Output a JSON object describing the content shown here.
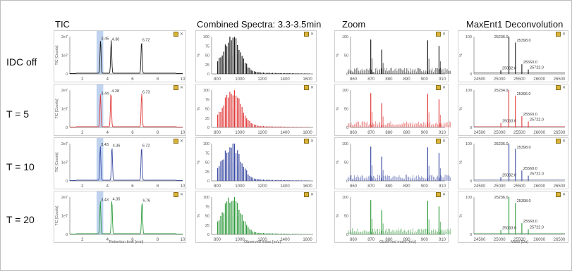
{
  "columns": [
    "TIC",
    "Combined Spectra: 3.3-3.5min",
    "Zoom",
    "MaxEnt1 Deconvolution"
  ],
  "rows": [
    "IDC off",
    "T = 5",
    "T = 10",
    "T = 20"
  ],
  "colors": {
    "IDC off": "#1a1a1a",
    "T = 5": "#e0393a",
    "T = 10": "#3a4aa2",
    "T = 20": "#2f9a3b",
    "highlight": "#aac4ea"
  },
  "icons": [
    "pin-icon",
    "close-icon"
  ],
  "axis_labels": {
    "tic_y": "TIC [Counts]",
    "tic_x": "Retention time [min]",
    "spec_x": "Observed mass [m/z]",
    "zoom_x": "Observed mass [m/z]",
    "deconv_x": "Mass [Da]"
  },
  "chart_data": [
    {
      "type": "line",
      "title": "TIC",
      "xlim": [
        1,
        10
      ],
      "xticks": [
        "2",
        "4",
        "6",
        "8",
        "10"
      ],
      "yticks": [
        "0",
        "1e7",
        "2e7"
      ],
      "xlabel": "Retention time [min]",
      "ylabel": "TIC [Counts]",
      "highlight_range": [
        3.3,
        3.5
      ],
      "series": [
        {
          "name": "IDC off",
          "peaks": [
            {
              "x": 3.45,
              "label": "3.45",
              "h": 0.9
            },
            {
              "x": 4.3,
              "label": "4.30",
              "h": 0.88
            },
            {
              "x": 6.72,
              "label": "6.72",
              "h": 0.86
            }
          ]
        },
        {
          "name": "T = 5",
          "peaks": [
            {
              "x": 3.44,
              "label": "3.44",
              "h": 0.86
            },
            {
              "x": 4.28,
              "label": "4.28",
              "h": 0.92
            },
            {
              "x": 6.73,
              "label": "6.73",
              "h": 0.9
            }
          ]
        },
        {
          "name": "T = 10",
          "peaks": [
            {
              "x": 3.43,
              "label": "3.43",
              "h": 0.92
            },
            {
              "x": 4.36,
              "label": "4.36",
              "h": 0.9
            },
            {
              "x": 6.72,
              "label": "6.72",
              "h": 0.9
            }
          ]
        },
        {
          "name": "T = 20",
          "peaks": [
            {
              "x": 3.43,
              "label": "3.43",
              "h": 0.88
            },
            {
              "x": 4.35,
              "label": "4.35",
              "h": 0.9
            },
            {
              "x": 6.76,
              "label": "6.76",
              "h": 0.86
            }
          ]
        }
      ]
    },
    {
      "type": "bar",
      "title": "Combined Spectra: 3.3-3.5min",
      "xlim": [
        700,
        1700
      ],
      "xticks": [
        "800",
        "1000",
        "1200",
        "1400",
        "1600"
      ],
      "yticks": [
        "0",
        "25",
        "50",
        "75",
        "100"
      ],
      "ylabel": "%",
      "xlabel": "Observed mass [m/z]",
      "peak_center": 900,
      "series": [
        {
          "name": "IDC off"
        },
        {
          "name": "T = 5"
        },
        {
          "name": "T = 10"
        },
        {
          "name": "T = 20"
        }
      ]
    },
    {
      "type": "bar",
      "title": "Zoom",
      "xlim": [
        955,
        915
      ],
      "xticks": [
        "860",
        "870",
        "880",
        "890",
        "900",
        "910"
      ],
      "yticks": [
        "0",
        "50",
        "100"
      ],
      "ylabel": "%",
      "xlabel": "Observed mass [m/z]",
      "major_peaks": [
        869.8,
        876.0,
        901.8,
        908.2
      ],
      "series": [
        {
          "name": "IDC off"
        },
        {
          "name": "T = 5"
        },
        {
          "name": "T = 10"
        },
        {
          "name": "T = 20"
        }
      ]
    },
    {
      "type": "bar",
      "title": "MaxEnt1 Deconvolution",
      "xlim": [
        24200,
        26700
      ],
      "xticks": [
        "24500",
        "25000",
        "25500",
        "26000",
        "26500"
      ],
      "yticks": [
        "0",
        "100"
      ],
      "ylabel": "%",
      "xlabel": "Mass [Da]",
      "series": [
        {
          "name": "IDC off",
          "peaks": [
            {
              "x": 25236.0,
              "label": "25236.0",
              "h": 1.0
            },
            {
              "x": 25398.0,
              "label": "25398.0",
              "h": 0.84
            },
            {
              "x": 25032.0,
              "label": "25032.0",
              "h": 0.1
            },
            {
              "x": 25560.0,
              "label": "25560.0",
              "h": 0.26
            },
            {
              "x": 25722.0,
              "label": "25722.0",
              "h": 0.12
            }
          ]
        },
        {
          "name": "T = 5",
          "peaks": [
            {
              "x": 25234.0,
              "label": "25234.0",
              "h": 1.0
            },
            {
              "x": 25396.0,
              "label": "25396.0",
              "h": 0.85
            },
            {
              "x": 25033.0,
              "label": "25033.0",
              "h": 0.12
            },
            {
              "x": 25560.0,
              "label": "25560.0",
              "h": 0.3
            },
            {
              "x": 25722.0,
              "label": "25722.0",
              "h": 0.16
            }
          ]
        },
        {
          "name": "T = 10",
          "peaks": [
            {
              "x": 25236.0,
              "label": "25236.0",
              "h": 1.0
            },
            {
              "x": 25398.0,
              "label": "25398.0",
              "h": 0.86
            },
            {
              "x": 25032.0,
              "label": "25032.0",
              "h": 0.1
            },
            {
              "x": 25560.0,
              "label": "25560.0",
              "h": 0.28
            },
            {
              "x": 25722.0,
              "label": "25722.0",
              "h": 0.14
            }
          ]
        },
        {
          "name": "T = 20",
          "peaks": [
            {
              "x": 25236.0,
              "label": "25236.0",
              "h": 1.0
            },
            {
              "x": 25398.0,
              "label": "25398.0",
              "h": 0.84
            },
            {
              "x": 25033.0,
              "label": "25033.0",
              "h": 0.12
            },
            {
              "x": 25560.0,
              "label": "25560.0",
              "h": 0.3
            },
            {
              "x": 25722.0,
              "label": "25722.0",
              "h": 0.14
            }
          ]
        }
      ]
    }
  ]
}
